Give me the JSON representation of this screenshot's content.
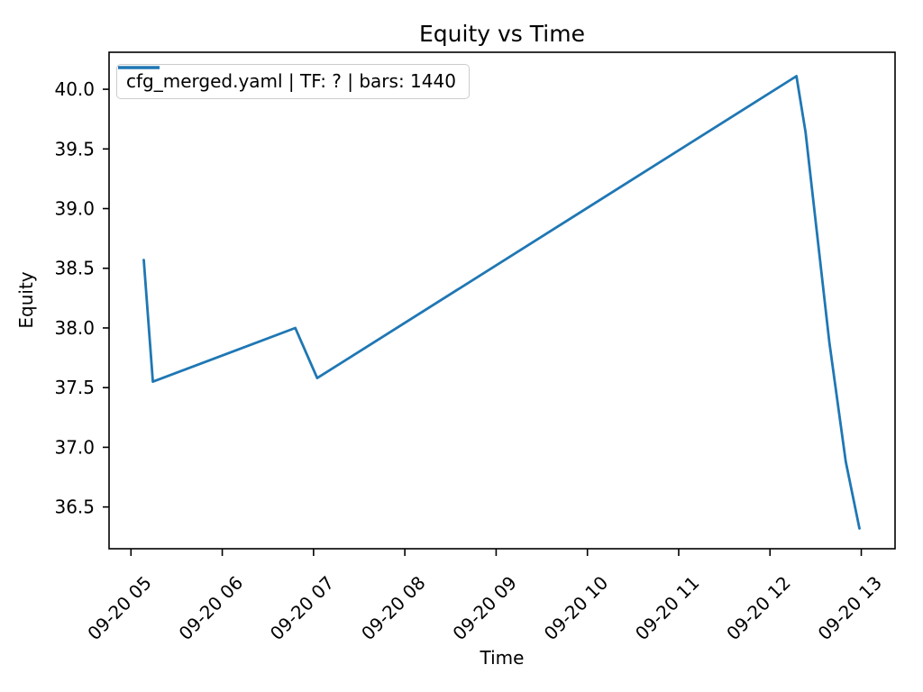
{
  "chart_data": {
    "type": "line",
    "title": "Equity vs Time",
    "xlabel": "Time",
    "ylabel": "Equity",
    "grid": false,
    "legend_position": "upper left",
    "x_axis_unit": "datetime (MM-DD HH), all on 09-20",
    "xlim_hours": [
      4.76,
      13.37
    ],
    "ylim": [
      36.15,
      40.31
    ],
    "x_ticks": [
      {
        "hour": 5,
        "label": "09-20 05"
      },
      {
        "hour": 6,
        "label": "09-20 06"
      },
      {
        "hour": 7,
        "label": "09-20 07"
      },
      {
        "hour": 8,
        "label": "09-20 08"
      },
      {
        "hour": 9,
        "label": "09-20 09"
      },
      {
        "hour": 10,
        "label": "09-20 10"
      },
      {
        "hour": 11,
        "label": "09-20 11"
      },
      {
        "hour": 12,
        "label": "09-20 12"
      },
      {
        "hour": 13,
        "label": "09-20 13"
      }
    ],
    "y_ticks": [
      36.5,
      37.0,
      37.5,
      38.0,
      38.5,
      39.0,
      39.5,
      40.0
    ],
    "series": [
      {
        "name": "cfg_merged.yaml | TF: ? | bars: 1440",
        "color": "#1f77b4",
        "points": [
          {
            "time": "09-20 05:08",
            "hour": 5.14,
            "equity": 38.57
          },
          {
            "time": "09-20 05:14",
            "hour": 5.24,
            "equity": 37.55
          },
          {
            "time": "09-20 06:48",
            "hour": 6.8,
            "equity": 38.0
          },
          {
            "time": "09-20 07:02",
            "hour": 7.04,
            "equity": 37.58
          },
          {
            "time": "09-20 12:17",
            "hour": 12.29,
            "equity": 40.11
          },
          {
            "time": "09-20 12:23",
            "hour": 12.39,
            "equity": 39.64
          },
          {
            "time": "09-20 12:39",
            "hour": 12.65,
            "equity": 37.88
          },
          {
            "time": "09-20 12:50",
            "hour": 12.83,
            "equity": 36.88
          },
          {
            "time": "09-20 13:00",
            "hour": 12.98,
            "equity": 36.32
          }
        ]
      }
    ]
  },
  "style": {
    "line_color": "#1f77b4",
    "spine_color": "#000000",
    "text_color": "#000000",
    "legend_border_color": "#cccccc",
    "background": "#ffffff"
  }
}
